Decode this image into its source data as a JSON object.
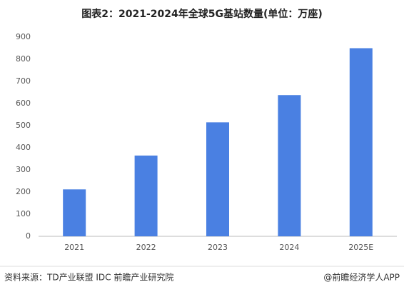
{
  "chart_data": {
    "type": "bar",
    "title": "图表2：2021-2024年全球5G基站数量(单位：万座)",
    "categories": [
      "2021",
      "2022",
      "2023",
      "2024",
      "2025E"
    ],
    "values": [
      212,
      365,
      515,
      638,
      850
    ],
    "color": "#4a80e2",
    "ylim": [
      0,
      900
    ],
    "yticks": [
      0,
      100,
      200,
      300,
      400,
      500,
      600,
      700,
      800,
      900
    ],
    "grid": false
  },
  "footer": {
    "source": "资料来源：TD产业联盟 IDC 前瞻产业研究院",
    "brand": "@前瞻经济学人APP"
  }
}
